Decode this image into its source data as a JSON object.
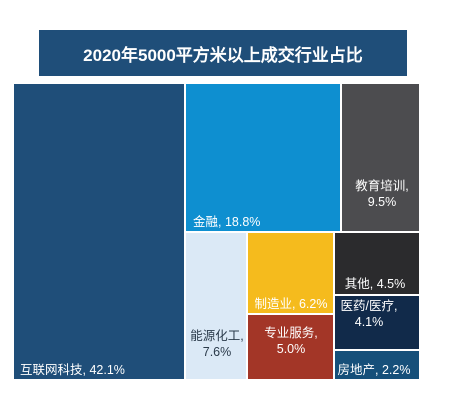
{
  "chart_data": {
    "type": "treemap",
    "title": "2020年5000平方米以上成交行业占比",
    "series": [
      {
        "name": "互联网科技",
        "value": 42.1,
        "label": "互联网科技, 42.1%",
        "color": "#1f4e79",
        "text_color": "#ffffff"
      },
      {
        "name": "金融",
        "value": 18.8,
        "label": "金融, 18.8%",
        "color": "#0e8fd0",
        "text_color": "#ffffff"
      },
      {
        "name": "教育培训",
        "value": 9.5,
        "label": "教育培训,\n9.5%",
        "color": "#4c4c4f",
        "text_color": "#ffffff"
      },
      {
        "name": "能源化工",
        "value": 7.6,
        "label": "能源化工,\n7.6%",
        "color": "#dbe9f6",
        "text_color": "#2a3a4a"
      },
      {
        "name": "制造业",
        "value": 6.2,
        "label": "制造业, 6.2%",
        "color": "#f5bb1d",
        "text_color": "#ffffff"
      },
      {
        "name": "专业服务",
        "value": 5.0,
        "label": "专业服务,\n5.0%",
        "color": "#a33627",
        "text_color": "#ffffff"
      },
      {
        "name": "其他",
        "value": 4.5,
        "label": "其他, 4.5%",
        "color": "#2b2b2d",
        "text_color": "#ffffff"
      },
      {
        "name": "医药/医疗",
        "value": 4.1,
        "label": "医药/医疗,\n4.1%",
        "color": "#112a4a",
        "text_color": "#ffffff"
      },
      {
        "name": "房地产",
        "value": 2.2,
        "label": "房地产, 2.2%",
        "color": "#16507a",
        "text_color": "#ffffff"
      }
    ]
  }
}
